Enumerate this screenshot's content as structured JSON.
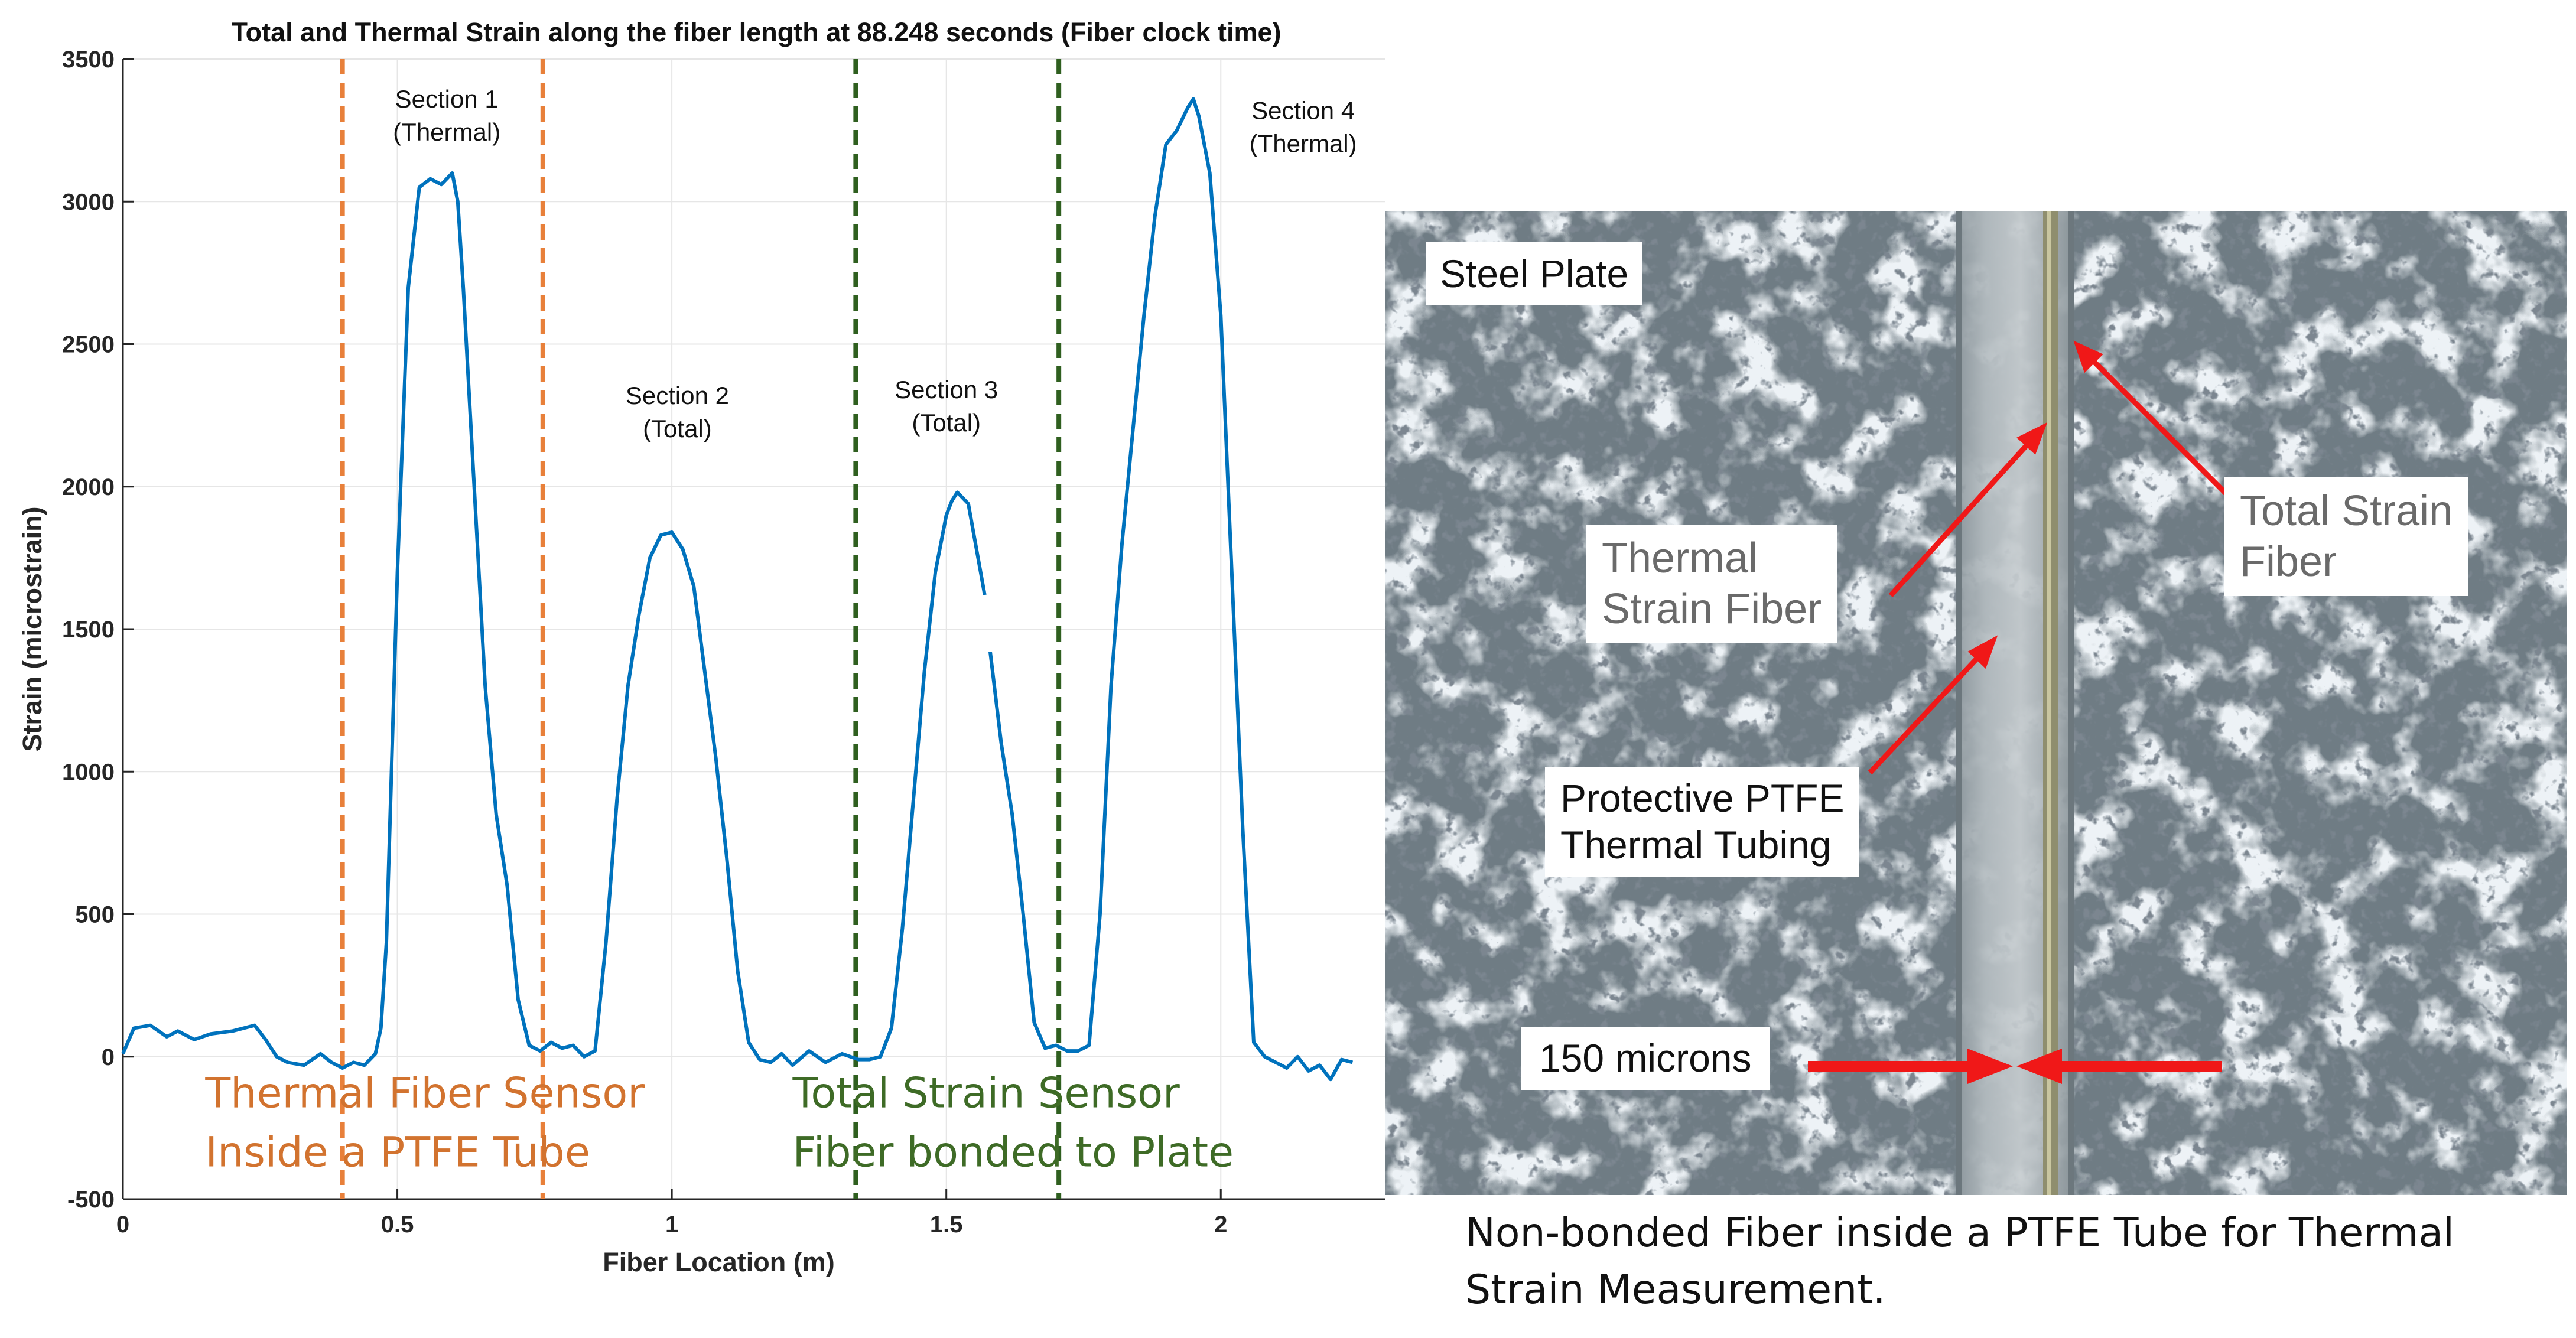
{
  "chart_data": {
    "type": "line",
    "title": "Total  and Thermal Strain along the fiber length at 88.248 seconds (Fiber clock time)",
    "xlabel": "Fiber Location (m)",
    "ylabel": "Strain (microstrain)",
    "xlim": [
      0,
      2.3
    ],
    "ylim": [
      -500,
      3500
    ],
    "xticks": [
      0,
      0.5,
      1,
      1.5,
      2
    ],
    "xtick_labels": [
      "0",
      "0.5",
      "1",
      "1.5",
      "2"
    ],
    "yticks": [
      -500,
      0,
      500,
      1000,
      1500,
      2000,
      2500,
      3000,
      3500
    ],
    "ytick_labels": [
      "-500",
      "0",
      "500",
      "1000",
      "1500",
      "2000",
      "2500",
      "3000",
      "3500"
    ],
    "grid": true,
    "line_color": "#0072BD",
    "series": [
      {
        "x": [
          0,
          0.02,
          0.05,
          0.08,
          0.1,
          0.13,
          0.16,
          0.2,
          0.24,
          0.26,
          0.28,
          0.3,
          0.33,
          0.36,
          0.38,
          0.4,
          0.42,
          0.44,
          0.46,
          0.47,
          0.48,
          0.5,
          0.52,
          0.54,
          0.56,
          0.58,
          0.6,
          0.61,
          0.62,
          0.64,
          0.66,
          0.68,
          0.7,
          0.72,
          0.74,
          0.76,
          0.78,
          0.8,
          0.82,
          0.84,
          0.86,
          0.88,
          0.9,
          0.92,
          0.94,
          0.96,
          0.98,
          1.0,
          1.02,
          1.04,
          1.06,
          1.08,
          1.1,
          1.12,
          1.14,
          1.16,
          1.18,
          1.2,
          1.22,
          1.25,
          1.28,
          1.31,
          1.34,
          1.36,
          1.38,
          1.4,
          1.42,
          1.44,
          1.46,
          1.48,
          1.5,
          1.51,
          1.52,
          1.54,
          1.555,
          1.57
        ],
        "y": [
          10,
          100,
          110,
          70,
          90,
          60,
          80,
          90,
          110,
          60,
          0,
          -20,
          -30,
          10,
          -20,
          -40,
          -20,
          -30,
          10,
          100,
          400,
          1700,
          2700,
          3050,
          3080,
          3060,
          3100,
          3000,
          2700,
          2000,
          1300,
          850,
          600,
          200,
          40,
          20,
          50,
          30,
          40,
          0,
          20,
          400,
          900,
          1300,
          1550,
          1750,
          1830,
          1840,
          1780,
          1650,
          1350,
          1050,
          700,
          300,
          50,
          -10,
          -20,
          10,
          -30,
          20,
          -20,
          10,
          -10,
          -10,
          0,
          100,
          450,
          900,
          1350,
          1700,
          1900,
          1950,
          1980,
          1940,
          1780,
          1620
        ]
      },
      {
        "x": [
          1.58,
          1.6,
          1.62,
          1.64,
          1.66,
          1.68,
          1.7,
          1.72,
          1.74,
          1.76,
          1.78,
          1.8,
          1.82,
          1.84,
          1.86,
          1.88,
          1.9,
          1.92,
          1.94,
          1.95,
          1.96,
          1.98,
          2.0,
          2.02,
          2.04,
          2.06,
          2.08,
          2.1,
          2.12,
          2.14,
          2.16,
          2.18,
          2.2,
          2.22,
          2.24
        ],
        "y": [
          1420,
          1100,
          850,
          500,
          120,
          30,
          40,
          20,
          20,
          40,
          500,
          1300,
          1800,
          2200,
          2600,
          2950,
          3200,
          3250,
          3330,
          3360,
          3300,
          3100,
          2600,
          1700,
          800,
          50,
          0,
          -20,
          -40,
          0,
          -50,
          -30,
          -80,
          -10,
          -20
        ]
      }
    ],
    "vlines": [
      {
        "x": 0.4,
        "color": "#E8803A",
        "style": "dashed"
      },
      {
        "x": 0.765,
        "color": "#E8803A",
        "style": "dashed"
      },
      {
        "x": 1.335,
        "color": "#2F5F1F",
        "style": "dashed"
      },
      {
        "x": 1.705,
        "color": "#2F5F1F",
        "style": "dashed"
      }
    ],
    "annotations": [
      {
        "text": "Section 1\n(Thermal)",
        "x": 0.59,
        "y": 3330
      },
      {
        "text": "Section 2\n(Total)",
        "x": 1.01,
        "y": 2290
      },
      {
        "text": "Section 3\n(Total)",
        "x": 1.5,
        "y": 2310
      },
      {
        "text": "Section 4\n(Thermal)",
        "x": 2.15,
        "y": 3290
      }
    ],
    "sensor_labels": [
      {
        "text": "Thermal Fiber Sensor\nInside  a PTFE Tube",
        "x": 0.15,
        "y": -70,
        "color": "#D2732F"
      },
      {
        "text": "Total Strain Sensor\nFiber bonded to Plate",
        "x": 1.22,
        "y": -70,
        "color": "#3E6B26"
      }
    ]
  },
  "photo": {
    "background_color": "#7f8c93",
    "labels": {
      "steel_plate": "Steel Plate",
      "thermal_fiber": "Thermal\nStrain Fiber",
      "total_fiber": "Total Strain\nFiber",
      "ptfe": "Protective PTFE\nThermal Tubing",
      "scale": "150 microns"
    }
  },
  "caption": "Non-bonded Fiber inside a PTFE Tube for Thermal Strain Measurement."
}
